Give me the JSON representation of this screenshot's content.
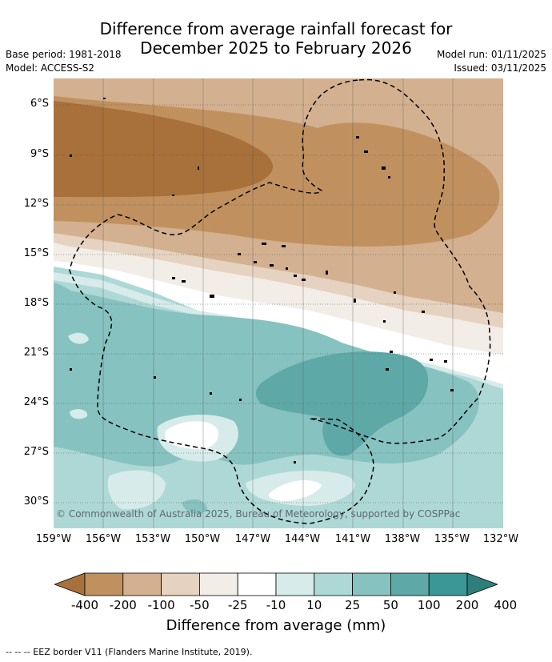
{
  "header": {
    "title_line1": "Difference from average rainfall forecast for",
    "title_line2": "December 2025 to February 2026",
    "base_period": "Base period: 1981-2018",
    "model": "Model: ACCESS-S2",
    "model_run": "Model run: 01/11/2025",
    "issued": "Issued: 03/11/2025"
  },
  "map": {
    "lat_labels": [
      "6°S",
      "9°S",
      "12°S",
      "15°S",
      "18°S",
      "21°S",
      "24°S",
      "27°S",
      "30°S"
    ],
    "lon_labels": [
      "159°W",
      "156°W",
      "153°W",
      "150°W",
      "147°W",
      "144°W",
      "141°W",
      "138°W",
      "135°W",
      "132°W"
    ],
    "credit": "© Commonwealth of Australia 2025, Bureau of Meteorology, supported by COSPPac"
  },
  "colorbar": {
    "labels": [
      "-400",
      "-200",
      "-100",
      "-50",
      "-25",
      "-10",
      "10",
      "25",
      "50",
      "100",
      "200",
      "400"
    ],
    "colors": [
      "#a8703a",
      "#c0915f",
      "#d3b08f",
      "#e6d2c0",
      "#f2ede6",
      "#ffffff",
      "#d6ebea",
      "#aed8d6",
      "#86c2c0",
      "#5ea9a8",
      "#3b9796",
      "#2e7f7c"
    ],
    "title": "Difference from average (mm)"
  },
  "footer": {
    "eez_note": "--  --  -- EEZ border V11 (Flanders Marine Institute, 2019)."
  }
}
